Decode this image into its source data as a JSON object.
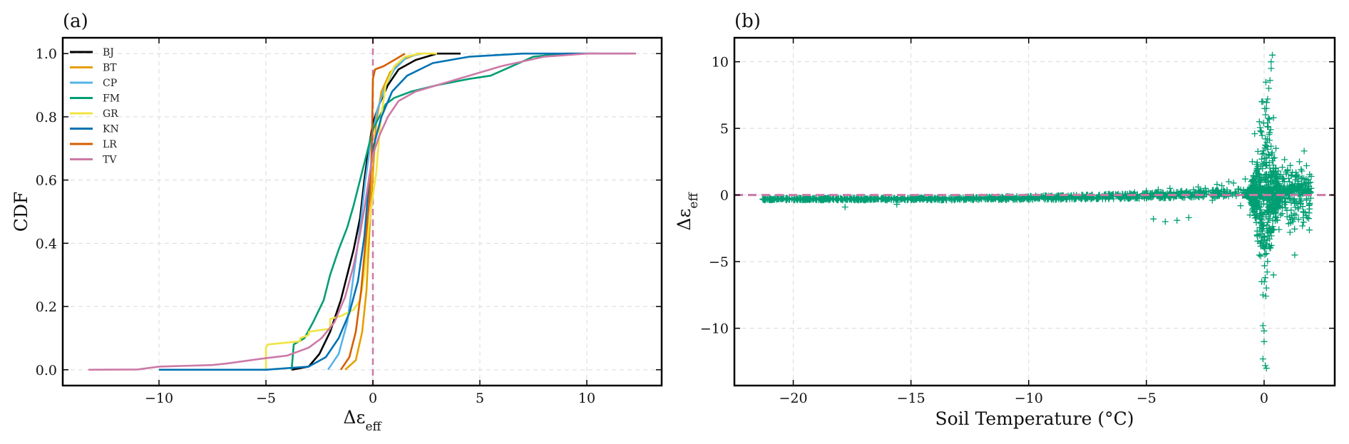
{
  "chart_data": [
    {
      "panel_label": "(a)",
      "type": "line",
      "ylabel": "CDF",
      "xlabel": "Δε",
      "xlabel_sub": "eff",
      "xlim": [
        -14.5,
        13.5
      ],
      "ylim": [
        -0.05,
        1.05
      ],
      "xticks": [
        -10,
        -5,
        0,
        5,
        10
      ],
      "xtick_labels": [
        "−10",
        "−5",
        "0",
        "5",
        "10"
      ],
      "yticks": [
        0.0,
        0.2,
        0.4,
        0.6,
        0.8,
        1.0
      ],
      "ytick_labels": [
        "0.0",
        "0.2",
        "0.4",
        "0.6",
        "0.8",
        "1.0"
      ],
      "grid": true,
      "legend_position": "upper-left",
      "reference_line": {
        "x": 0,
        "color": "#cc79a7",
        "style": "dashed"
      },
      "series": [
        {
          "name": "BJ",
          "color": "#000000",
          "points": [
            [
              -3.8,
              0.0
            ],
            [
              -3.0,
              0.01
            ],
            [
              -2.5,
              0.05
            ],
            [
              -2.0,
              0.12
            ],
            [
              -1.5,
              0.22
            ],
            [
              -1.2,
              0.3
            ],
            [
              -0.9,
              0.38
            ],
            [
              -0.6,
              0.48
            ],
            [
              -0.4,
              0.6
            ],
            [
              -0.2,
              0.7
            ],
            [
              0.0,
              0.78
            ],
            [
              0.3,
              0.84
            ],
            [
              0.7,
              0.9
            ],
            [
              1.2,
              0.95
            ],
            [
              2.0,
              0.98
            ],
            [
              3.0,
              1.0
            ],
            [
              4.1,
              1.0
            ]
          ]
        },
        {
          "name": "BT",
          "color": "#e69f00",
          "points": [
            [
              -1.3,
              0.0
            ],
            [
              -0.8,
              0.03
            ],
            [
              -0.5,
              0.12
            ],
            [
              -0.3,
              0.25
            ],
            [
              -0.15,
              0.45
            ],
            [
              0.0,
              0.62
            ],
            [
              0.15,
              0.78
            ],
            [
              0.4,
              0.88
            ],
            [
              0.8,
              0.94
            ],
            [
              1.4,
              0.98
            ],
            [
              2.1,
              1.0
            ],
            [
              2.8,
              1.0
            ]
          ]
        },
        {
          "name": "CP",
          "color": "#56b4e9",
          "points": [
            [
              -2.1,
              0.0
            ],
            [
              -1.6,
              0.05
            ],
            [
              -1.2,
              0.15
            ],
            [
              -0.9,
              0.3
            ],
            [
              -0.6,
              0.45
            ],
            [
              -0.35,
              0.6
            ],
            [
              -0.1,
              0.72
            ],
            [
              0.2,
              0.82
            ],
            [
              0.6,
              0.9
            ],
            [
              1.0,
              0.95
            ],
            [
              1.6,
              0.99
            ],
            [
              2.3,
              1.0
            ]
          ]
        },
        {
          "name": "FM",
          "color": "#009e73",
          "points": [
            [
              -3.8,
              0.0
            ],
            [
              -3.7,
              0.08
            ],
            [
              -3.2,
              0.1
            ],
            [
              -2.8,
              0.15
            ],
            [
              -2.3,
              0.22
            ],
            [
              -2.0,
              0.3
            ],
            [
              -1.6,
              0.38
            ],
            [
              -1.2,
              0.45
            ],
            [
              -0.9,
              0.52
            ],
            [
              -0.6,
              0.6
            ],
            [
              -0.3,
              0.68
            ],
            [
              0.0,
              0.76
            ],
            [
              0.3,
              0.8
            ],
            [
              0.6,
              0.84
            ],
            [
              1.0,
              0.86
            ],
            [
              1.8,
              0.88
            ],
            [
              3.0,
              0.9
            ],
            [
              4.5,
              0.92
            ],
            [
              5.5,
              0.93
            ],
            [
              6.5,
              0.96
            ],
            [
              7.5,
              0.99
            ],
            [
              9.0,
              1.0
            ],
            [
              10.5,
              1.0
            ]
          ]
        },
        {
          "name": "GR",
          "color": "#f0e442",
          "points": [
            [
              -5.0,
              0.0
            ],
            [
              -5.0,
              0.07
            ],
            [
              -4.9,
              0.08
            ],
            [
              -3.4,
              0.09
            ],
            [
              -3.4,
              0.1
            ],
            [
              -3.0,
              0.11
            ],
            [
              -3.0,
              0.12
            ],
            [
              -2.0,
              0.13
            ],
            [
              -2.0,
              0.16
            ],
            [
              -1.5,
              0.17
            ],
            [
              -0.9,
              0.19
            ],
            [
              -0.6,
              0.22
            ],
            [
              -0.4,
              0.3
            ],
            [
              -0.2,
              0.45
            ],
            [
              0.0,
              0.55
            ],
            [
              0.15,
              0.62
            ],
            [
              0.35,
              0.78
            ],
            [
              0.6,
              0.9
            ],
            [
              1.0,
              0.96
            ],
            [
              1.5,
              0.99
            ],
            [
              2.2,
              1.0
            ],
            [
              3.0,
              1.0
            ]
          ]
        },
        {
          "name": "KN",
          "color": "#0072b2",
          "points": [
            [
              -10.0,
              0.0
            ],
            [
              -5.0,
              0.0
            ],
            [
              -3.0,
              0.01
            ],
            [
              -2.2,
              0.04
            ],
            [
              -1.6,
              0.1
            ],
            [
              -1.1,
              0.18
            ],
            [
              -0.7,
              0.28
            ],
            [
              -0.4,
              0.42
            ],
            [
              -0.2,
              0.58
            ],
            [
              0.0,
              0.7
            ],
            [
              0.4,
              0.8
            ],
            [
              0.9,
              0.88
            ],
            [
              1.6,
              0.93
            ],
            [
              2.8,
              0.97
            ],
            [
              4.5,
              0.99
            ],
            [
              7.0,
              1.0
            ],
            [
              12.3,
              1.0
            ]
          ]
        },
        {
          "name": "LR",
          "color": "#d55e00",
          "points": [
            [
              -1.5,
              0.0
            ],
            [
              -1.1,
              0.04
            ],
            [
              -0.8,
              0.12
            ],
            [
              -0.55,
              0.25
            ],
            [
              -0.35,
              0.4
            ],
            [
              -0.15,
              0.55
            ],
            [
              -0.05,
              0.7
            ],
            [
              0.0,
              0.92
            ],
            [
              0.1,
              0.95
            ],
            [
              0.5,
              0.96
            ],
            [
              1.0,
              0.98
            ],
            [
              1.5,
              1.0
            ]
          ]
        },
        {
          "name": "TV",
          "color": "#cc79a7",
          "points": [
            [
              -13.3,
              0.0
            ],
            [
              -11.0,
              0.001
            ],
            [
              -10.0,
              0.01
            ],
            [
              -7.5,
              0.015
            ],
            [
              -6.8,
              0.02
            ],
            [
              -5.2,
              0.035
            ],
            [
              -4.0,
              0.045
            ],
            [
              -3.0,
              0.07
            ],
            [
              -2.4,
              0.1
            ],
            [
              -1.8,
              0.15
            ],
            [
              -1.3,
              0.23
            ],
            [
              -0.9,
              0.33
            ],
            [
              -0.6,
              0.43
            ],
            [
              -0.35,
              0.53
            ],
            [
              -0.15,
              0.62
            ],
            [
              0.0,
              0.68
            ],
            [
              0.3,
              0.74
            ],
            [
              0.7,
              0.8
            ],
            [
              1.2,
              0.85
            ],
            [
              2.0,
              0.88
            ],
            [
              3.0,
              0.9
            ],
            [
              4.5,
              0.93
            ],
            [
              6.0,
              0.96
            ],
            [
              8.0,
              0.99
            ],
            [
              10.0,
              1.0
            ],
            [
              12.3,
              1.0
            ]
          ]
        }
      ]
    },
    {
      "panel_label": "(b)",
      "type": "scatter",
      "ylabel": "Δε",
      "ylabel_sub": "eff",
      "xlabel": "Soil Temperature (°C)",
      "xlim": [
        -22.5,
        3.0
      ],
      "ylim": [
        -14.3,
        11.8
      ],
      "xticks": [
        -20,
        -15,
        -10,
        -5,
        0
      ],
      "xtick_labels": [
        "−20",
        "−15",
        "−10",
        "−5",
        "0"
      ],
      "yticks": [
        -10,
        -5,
        0,
        5,
        10
      ],
      "ytick_labels": [
        "−10",
        "−5",
        "0",
        "5",
        "10"
      ],
      "grid": true,
      "marker": "+",
      "color": "#009e73",
      "reference_line": {
        "y": 0,
        "color": "#cc79a7",
        "style": "dashed"
      },
      "points": [
        [
          -21.2,
          -0.2
        ],
        [
          -20.5,
          -0.3
        ],
        [
          -19.8,
          -0.25
        ],
        [
          -19.0,
          -0.35
        ],
        [
          -18.5,
          -0.2
        ],
        [
          -17.8,
          -0.9
        ],
        [
          -17.0,
          -0.3
        ],
        [
          -16.2,
          -0.25
        ],
        [
          -15.6,
          -0.7
        ],
        [
          -15.0,
          -0.25
        ],
        [
          -14.0,
          -0.3
        ],
        [
          -13.0,
          -0.2
        ],
        [
          -12.0,
          -0.3
        ],
        [
          -11.0,
          -0.25
        ],
        [
          -10.0,
          -0.2
        ],
        [
          -9.0,
          -0.2
        ],
        [
          -8.0,
          -0.15
        ],
        [
          -7.0,
          -0.1
        ],
        [
          -6.0,
          0.0
        ],
        [
          -5.5,
          0.2
        ],
        [
          -5.0,
          0.3
        ],
        [
          -4.5,
          0.4
        ],
        [
          -4.0,
          0.5
        ],
        [
          -3.5,
          0.3
        ],
        [
          -3.0,
          0.4
        ],
        [
          -2.5,
          0.5
        ],
        [
          -2.0,
          0.8
        ],
        [
          -1.5,
          1.0
        ],
        [
          -4.7,
          -1.8
        ],
        [
          -4.2,
          -2.0
        ],
        [
          -3.7,
          -1.9
        ],
        [
          -3.2,
          -1.7
        ],
        [
          -1.0,
          -0.8
        ],
        [
          -0.8,
          1.2
        ],
        [
          -0.6,
          -1.5
        ],
        [
          -0.5,
          2.5
        ],
        [
          -0.4,
          4.6
        ],
        [
          -0.3,
          2.0
        ],
        [
          -0.3,
          -3.0
        ],
        [
          -0.2,
          -4.5
        ],
        [
          -0.2,
          5.5
        ],
        [
          -0.1,
          -6.5
        ],
        [
          -0.1,
          7.0
        ],
        [
          -0.05,
          -7.5
        ],
        [
          -0.05,
          -9.8
        ],
        [
          0.0,
          -10.2
        ],
        [
          0.0,
          -11.0
        ],
        [
          -0.05,
          -12.3
        ],
        [
          0.05,
          -12.8
        ],
        [
          0.1,
          -13.0
        ],
        [
          0.1,
          6.5
        ],
        [
          0.15,
          7.2
        ],
        [
          0.2,
          8.0
        ],
        [
          0.25,
          8.6
        ],
        [
          0.3,
          9.5
        ],
        [
          0.3,
          10.0
        ],
        [
          0.35,
          10.5
        ],
        [
          0.4,
          -6.0
        ],
        [
          0.4,
          5.8
        ],
        [
          0.5,
          3.5
        ],
        [
          0.6,
          1.8
        ],
        [
          0.7,
          -1.5
        ],
        [
          0.8,
          1.0
        ],
        [
          0.9,
          -0.5
        ],
        [
          1.0,
          0.5
        ],
        [
          1.1,
          -2.8
        ],
        [
          1.2,
          0.8
        ],
        [
          1.4,
          1.5
        ],
        [
          1.3,
          -4.5
        ],
        [
          1.5,
          2.5
        ],
        [
          1.6,
          1.8
        ],
        [
          1.7,
          3.3
        ],
        [
          1.8,
          2.2
        ],
        [
          1.9,
          0.9
        ],
        [
          2.0,
          1.4
        ],
        [
          2.0,
          0.5
        ],
        [
          -2.8,
          0.6
        ],
        [
          -1.8,
          0.7
        ],
        [
          -2.2,
          -0.4
        ],
        [
          -1.3,
          0.9
        ]
      ],
      "dense_band": {
        "points_per_series": 150,
        "main_band": {
          "x_range": [
            -21.3,
            2.0
          ],
          "y_base": [
            -0.3,
            0.45
          ],
          "y_spread_base": [
            0.08,
            0.35
          ]
        },
        "near_zero_spike": {
          "x_range": [
            -0.9,
            0.7
          ],
          "y_range": [
            -8.5,
            9.5
          ]
        },
        "warm_tail": {
          "x_range": [
            0.5,
            2.0
          ],
          "y_range": [
            -3.0,
            3.0
          ]
        }
      }
    }
  ]
}
